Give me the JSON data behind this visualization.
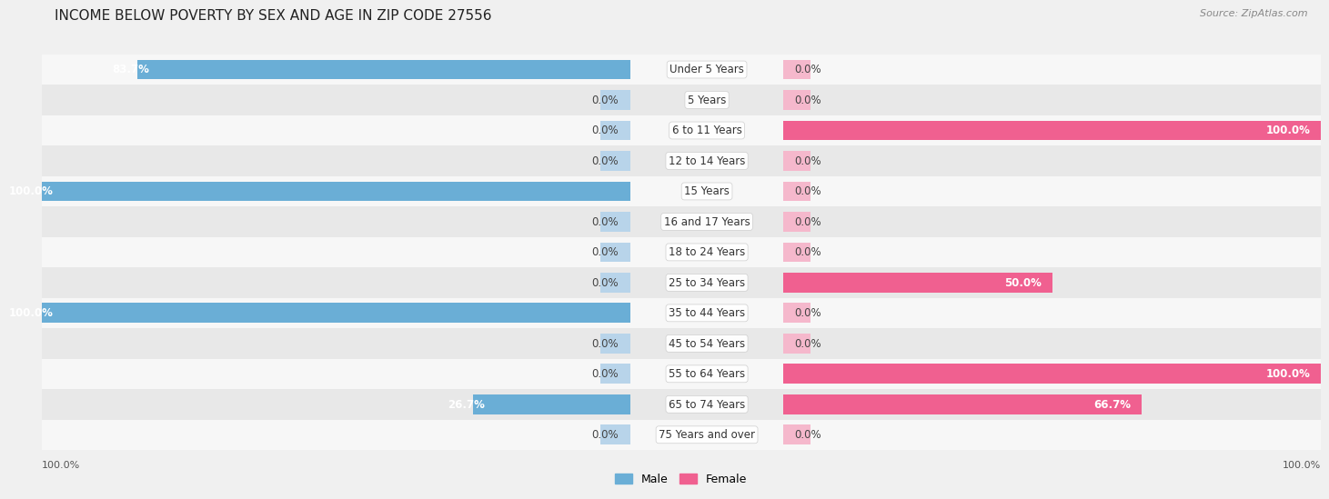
{
  "title": "INCOME BELOW POVERTY BY SEX AND AGE IN ZIP CODE 27556",
  "source": "Source: ZipAtlas.com",
  "categories": [
    "Under 5 Years",
    "5 Years",
    "6 to 11 Years",
    "12 to 14 Years",
    "15 Years",
    "16 and 17 Years",
    "18 to 24 Years",
    "25 to 34 Years",
    "35 to 44 Years",
    "45 to 54 Years",
    "55 to 64 Years",
    "65 to 74 Years",
    "75 Years and over"
  ],
  "male": [
    83.7,
    0.0,
    0.0,
    0.0,
    100.0,
    0.0,
    0.0,
    0.0,
    100.0,
    0.0,
    0.0,
    26.7,
    0.0
  ],
  "female": [
    0.0,
    0.0,
    100.0,
    0.0,
    0.0,
    0.0,
    0.0,
    50.0,
    0.0,
    0.0,
    100.0,
    66.7,
    0.0
  ],
  "male_color": "#6aaed6",
  "male_zero_color": "#b8d4ea",
  "female_color": "#f06090",
  "female_zero_color": "#f5b8cc",
  "male_label": "Male",
  "female_label": "Female",
  "background_color": "#f0f0f0",
  "row_bg_even": "#f7f7f7",
  "row_bg_odd": "#e8e8e8",
  "xlim": 100,
  "value_fontsize": 8.5,
  "label_fontsize": 8.5,
  "title_fontsize": 11,
  "source_fontsize": 8
}
